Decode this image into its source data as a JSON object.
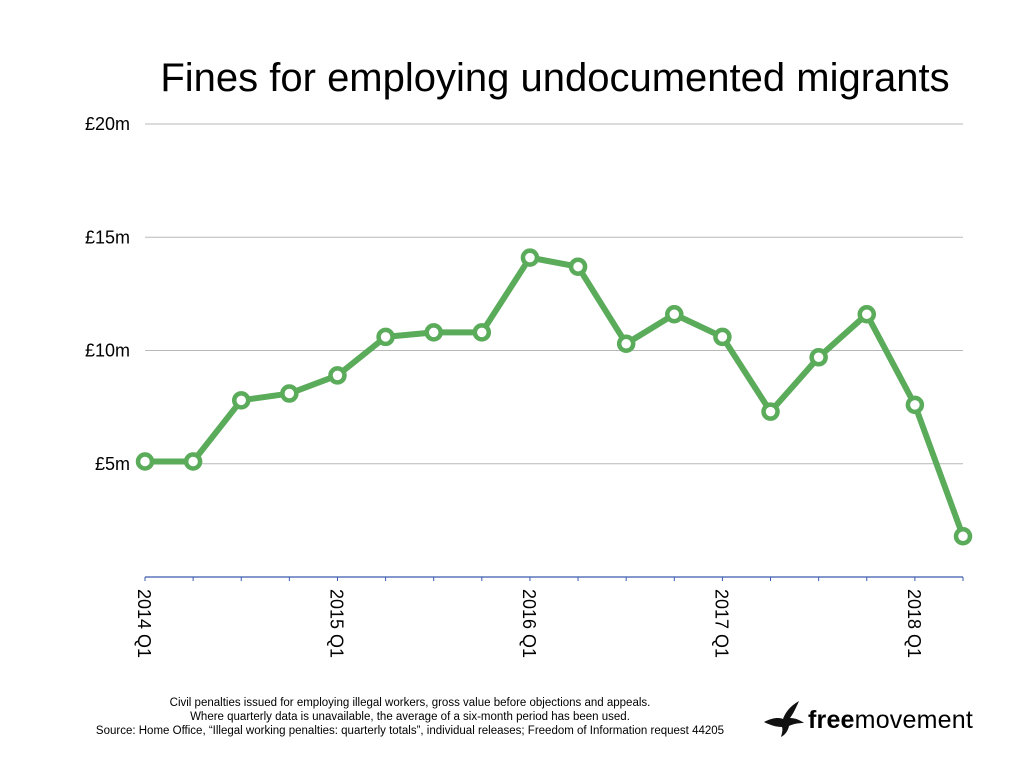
{
  "chart_data": {
    "type": "line",
    "title": "Fines for employing undocumented migrants",
    "xlabel": "",
    "ylabel": "",
    "x": [
      "2014 Q1",
      "2014 Q2",
      "2014 Q3",
      "2014 Q4",
      "2015 Q1",
      "2015 Q2",
      "2015 Q3",
      "2015 Q4",
      "2016 Q1",
      "2016 Q2",
      "2016 Q3",
      "2016 Q4",
      "2017 Q1",
      "2017 Q2",
      "2017 Q3",
      "2017 Q4",
      "2018 Q1",
      "2018 Q2"
    ],
    "x_tick_labels": [
      "2014 Q1",
      "",
      "",
      "",
      "2015 Q1",
      "",
      "",
      "",
      "2016 Q1",
      "",
      "",
      "",
      "2017 Q1",
      "",
      "",
      "",
      "2018 Q1",
      ""
    ],
    "series": [
      {
        "values": [
          5.1,
          5.1,
          7.8,
          8.1,
          8.9,
          10.6,
          10.8,
          10.8,
          14.1,
          13.7,
          10.3,
          11.6,
          10.6,
          7.3,
          9.7,
          11.6,
          7.6,
          1.8
        ],
        "color": "#5aab5a"
      }
    ],
    "ylim": [
      0,
      20
    ],
    "y_ticks": [
      5,
      10,
      15,
      20
    ],
    "y_tick_labels": [
      "£5m",
      "£10m",
      "£15m",
      "£20m"
    ],
    "grid": true,
    "legend": "none"
  },
  "caption": {
    "line1": "Civil penalties issued for employing illegal workers, gross value before objections and appeals.",
    "line2": "Where quarterly data is unavailable, the average of a six-month period has been used.",
    "line3": "Source: Home Office, “Illegal working penalties: quarterly totals”, individual releases; Freedom of Information request 44205"
  },
  "logo": {
    "part1": "free",
    "part2": "movement",
    "icon": "bird-icon"
  },
  "colors": {
    "line": "#5aab5a",
    "grid": "#b8b8b8",
    "axis": "#3a5bb0"
  }
}
